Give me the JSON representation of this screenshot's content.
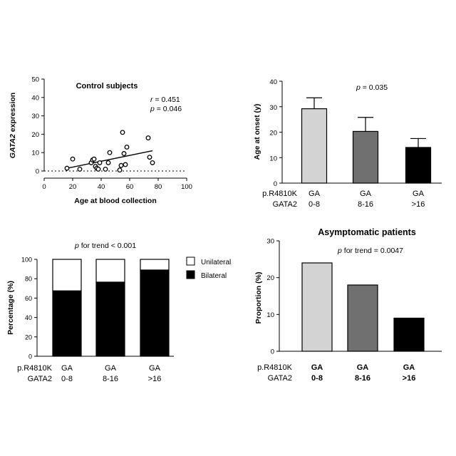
{
  "chart_data": [
    {
      "id": "A",
      "type": "scatter",
      "title": "Control subjects",
      "xlabel": "Age at blood collection",
      "ylabel_parts": [
        {
          "text": "GATA2",
          "italic": true
        },
        {
          "text": " expression",
          "italic": false
        }
      ],
      "xlim": [
        0,
        100
      ],
      "ylim": [
        0,
        50
      ],
      "xticks": [
        0,
        20,
        40,
        60,
        80,
        100
      ],
      "yticks": [
        0,
        10,
        20,
        30,
        40,
        50
      ],
      "annotations": [
        {
          "label": "r",
          "text": " = 0.451"
        },
        {
          "label": "p",
          "text": " = 0.046"
        }
      ],
      "points": [
        [
          16,
          1.5
        ],
        [
          20,
          6.5
        ],
        [
          25,
          1
        ],
        [
          33,
          4.5
        ],
        [
          34,
          6
        ],
        [
          35,
          6.5
        ],
        [
          36,
          2.5
        ],
        [
          37,
          1.5
        ],
        [
          38,
          1
        ],
        [
          39,
          4.5
        ],
        [
          43,
          1
        ],
        [
          45,
          4.5
        ],
        [
          46,
          10
        ],
        [
          53,
          0.5
        ],
        [
          54,
          3
        ],
        [
          55,
          21
        ],
        [
          56,
          9.5
        ],
        [
          57,
          3.5
        ],
        [
          58,
          13
        ],
        [
          73,
          18
        ],
        [
          74,
          7.5
        ],
        [
          76,
          4.5
        ]
      ],
      "regression": {
        "x": [
          16,
          76
        ],
        "y": [
          1.5,
          11
        ]
      },
      "baseline_dotted_y": 0
    },
    {
      "id": "B",
      "type": "bar",
      "ylabel": "Age at onset (y)",
      "ylim": [
        0,
        40
      ],
      "yticks": [
        0,
        10,
        20,
        30,
        40
      ],
      "stat_label": "p",
      "stat_text": " = 0.035",
      "row_labels": [
        "p.R4810K",
        "GATA2"
      ],
      "categories": [
        {
          "line1": "GA",
          "line2": "0-8"
        },
        {
          "line1": "GA",
          "line2": "8-16"
        },
        {
          "line1": "GA",
          "line2": ">16"
        }
      ],
      "values": [
        29.2,
        20.3,
        14.0
      ],
      "errors": [
        4.3,
        5.5,
        3.5
      ],
      "colors": [
        "#d3d3d3",
        "#707070",
        "#000000"
      ]
    },
    {
      "id": "C",
      "type": "bar",
      "stacked": true,
      "ylabel": "Percentage (%)",
      "ylim": [
        0,
        100
      ],
      "yticks": [
        0,
        20,
        40,
        60,
        80,
        100
      ],
      "stat_label": "p",
      "stat_text": " for trend < 0.001",
      "row_labels": [
        "p.R4810K",
        "GATA2"
      ],
      "categories": [
        {
          "line1": "GA",
          "line2": "0-8"
        },
        {
          "line1": "GA",
          "line2": "8-16"
        },
        {
          "line1": "GA",
          "line2": ">16"
        }
      ],
      "series": [
        {
          "name": "Bilateral",
          "values": [
            67.5,
            76.5,
            89
          ],
          "color": "#000000"
        },
        {
          "name": "Unilateral",
          "values": [
            32.5,
            23.5,
            11
          ],
          "color": "#ffffff"
        }
      ],
      "legend_position": "right"
    },
    {
      "id": "D",
      "type": "bar",
      "title": "Asymptomatic patients",
      "ylabel": "Proportion (%)",
      "ylim": [
        0,
        30
      ],
      "yticks": [
        0,
        10,
        20,
        30
      ],
      "stat_label": "p",
      "stat_text": " for trend = 0.0047",
      "row_labels": [
        "p.R4810K",
        "GATA2"
      ],
      "categories": [
        {
          "line1": "GA",
          "line2": "0-8"
        },
        {
          "line1": "GA",
          "line2": "8-16"
        },
        {
          "line1": "GA",
          "line2": ">16"
        }
      ],
      "values": [
        24,
        18,
        9
      ],
      "colors": [
        "#d3d3d3",
        "#707070",
        "#000000"
      ]
    }
  ]
}
